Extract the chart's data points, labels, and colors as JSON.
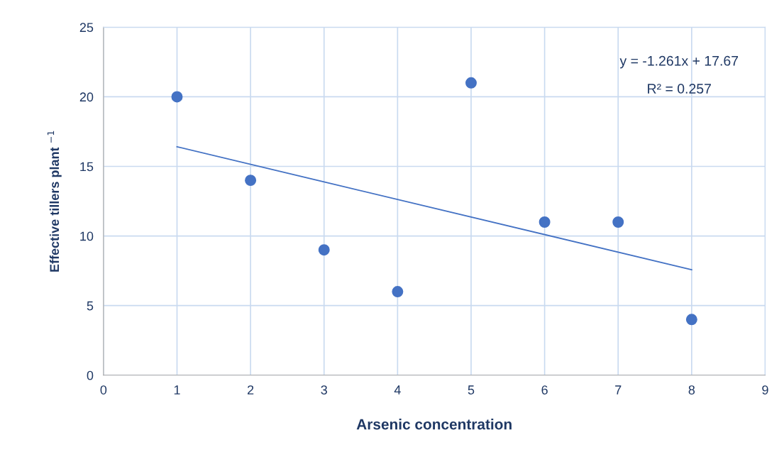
{
  "chart_data": {
    "type": "scatter",
    "xlabel": "Arsenic concentration",
    "ylabel": "Effective tillers plant $^{−1}$",
    "x": [
      1,
      2,
      3,
      4,
      5,
      6,
      7,
      8
    ],
    "series": [
      {
        "color": "#4472c4",
        "values": [
          20,
          14,
          9,
          6,
          21,
          11,
          11,
          4
        ],
        "marker": "circle"
      },
      {
        "type": "line",
        "color": "#4472c4",
        "x": [
          1,
          8
        ],
        "values": [
          16.41,
          7.58
        ],
        "marker": "none",
        "line_style": "solid"
      }
    ],
    "annotations": [
      "y = -1.261x + 17.67",
      "R² = 0.257"
    ],
    "xlim": [
      0,
      9
    ],
    "xticks": [
      0,
      1,
      2,
      3,
      4,
      5,
      6,
      7,
      8,
      9
    ],
    "ylim": [
      0,
      25
    ],
    "yticks": [
      0,
      5,
      10,
      15,
      20,
      25
    ],
    "grid": true
  }
}
